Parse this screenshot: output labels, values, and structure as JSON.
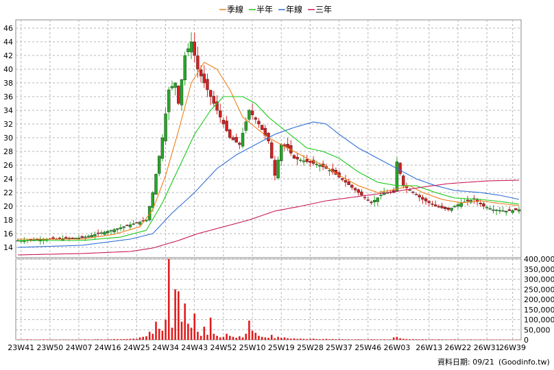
{
  "chart_data": [
    {
      "type": "line",
      "legend": [
        {
          "name": "季線",
          "color": "#f07f17"
        },
        {
          "name": "半年",
          "color": "#17c917"
        },
        {
          "name": "年線",
          "color": "#2f6fd6"
        },
        {
          "name": "三年",
          "color": "#c81a5a"
        }
      ],
      "legend_position": "top-center",
      "grid": true,
      "y_ticks": [
        14,
        16,
        18,
        20,
        22,
        24,
        26,
        28,
        30,
        32,
        34,
        36,
        38,
        40,
        42,
        44,
        46
      ],
      "ylim": [
        12.5,
        47.2
      ],
      "x_tick_labels": [
        "23W41",
        "23W50",
        "24W07",
        "24W16",
        "24W25",
        "24W34",
        "24W43",
        "24W52",
        "25W10",
        "25W19",
        "25W28",
        "25W37",
        "25W46",
        "26W03",
        "26W13",
        "26W22",
        "26W31",
        "26W39"
      ],
      "x_tick_index": [
        1,
        10,
        19,
        28,
        37,
        46,
        55,
        64,
        73,
        82,
        91,
        100,
        109,
        118,
        128,
        137,
        146,
        154
      ],
      "weeks": 157,
      "candles": {
        "up_color": "#26a626",
        "down_color": "#d42020",
        "key_closes": [
          [
            0,
            15.0
          ],
          [
            10,
            15.2
          ],
          [
            20,
            15.4
          ],
          [
            30,
            16.6
          ],
          [
            40,
            18.0
          ],
          [
            42,
            22.0
          ],
          [
            45,
            30.0
          ],
          [
            47,
            37.0
          ],
          [
            49,
            38.0
          ],
          [
            50,
            35.0
          ],
          [
            52,
            42.0
          ],
          [
            54,
            44.0
          ],
          [
            56,
            40.0
          ],
          [
            58,
            38.0
          ],
          [
            60,
            36.0
          ],
          [
            63,
            33.0
          ],
          [
            66,
            30.0
          ],
          [
            69,
            29.0
          ],
          [
            72,
            34.0
          ],
          [
            75,
            32.0
          ],
          [
            78,
            29.5
          ],
          [
            80,
            24.5
          ],
          [
            82,
            29.0
          ],
          [
            84,
            28.5
          ],
          [
            86,
            27.0
          ],
          [
            90,
            26.5
          ],
          [
            94,
            26.0
          ],
          [
            98,
            25.0
          ],
          [
            102,
            23.5
          ],
          [
            106,
            22.0
          ],
          [
            110,
            20.5
          ],
          [
            114,
            22.0
          ],
          [
            117,
            22.0
          ],
          [
            118,
            26.5
          ],
          [
            120,
            23.0
          ],
          [
            123,
            22.0
          ],
          [
            126,
            21.0
          ],
          [
            130,
            20.0
          ],
          [
            134,
            19.5
          ],
          [
            138,
            20.5
          ],
          [
            142,
            21.0
          ],
          [
            145,
            20.0
          ],
          [
            148,
            19.5
          ],
          [
            152,
            19.3
          ],
          [
            156,
            19.5
          ]
        ]
      },
      "series": [
        {
          "name": "季線",
          "color": "#f07f17",
          "points": [
            [
              0,
              15.2
            ],
            [
              20,
              15.2
            ],
            [
              30,
              15.9
            ],
            [
              38,
              17.0
            ],
            [
              42,
              19.5
            ],
            [
              46,
              24.5
            ],
            [
              50,
              31.0
            ],
            [
              54,
              38.0
            ],
            [
              58,
              41.0
            ],
            [
              62,
              40.0
            ],
            [
              66,
              37.0
            ],
            [
              70,
              33.0
            ],
            [
              74,
              31.5
            ],
            [
              78,
              30.0
            ],
            [
              82,
              29.0
            ],
            [
              86,
              28.0
            ],
            [
              90,
              27.0
            ],
            [
              95,
              26.0
            ],
            [
              100,
              24.5
            ],
            [
              106,
              23.0
            ],
            [
              112,
              22.0
            ],
            [
              118,
              22.5
            ],
            [
              122,
              23.0
            ],
            [
              126,
              22.0
            ],
            [
              132,
              21.0
            ],
            [
              138,
              20.5
            ],
            [
              144,
              20.8
            ],
            [
              150,
              20.4
            ],
            [
              156,
              20.1
            ]
          ]
        },
        {
          "name": "半年",
          "color": "#17c917",
          "points": [
            [
              0,
              15.0
            ],
            [
              20,
              15.0
            ],
            [
              32,
              15.5
            ],
            [
              40,
              16.5
            ],
            [
              45,
              20.5
            ],
            [
              50,
              25.5
            ],
            [
              55,
              30.5
            ],
            [
              60,
              34.0
            ],
            [
              64,
              36.0
            ],
            [
              70,
              36.0
            ],
            [
              74,
              35.0
            ],
            [
              78,
              33.0
            ],
            [
              82,
              31.5
            ],
            [
              86,
              30.0
            ],
            [
              90,
              28.5
            ],
            [
              95,
              28.0
            ],
            [
              100,
              27.0
            ],
            [
              106,
              25.0
            ],
            [
              112,
              23.5
            ],
            [
              118,
              23.0
            ],
            [
              124,
              23.0
            ],
            [
              130,
              22.0
            ],
            [
              136,
              21.2
            ],
            [
              144,
              21.0
            ],
            [
              150,
              20.7
            ],
            [
              156,
              20.3
            ]
          ]
        },
        {
          "name": "年線",
          "color": "#2f6fd6",
          "points": [
            [
              0,
              14.0
            ],
            [
              20,
              14.3
            ],
            [
              35,
              15.2
            ],
            [
              42,
              16.0
            ],
            [
              48,
              19.0
            ],
            [
              55,
              22.0
            ],
            [
              62,
              25.5
            ],
            [
              68,
              27.5
            ],
            [
              74,
              29.0
            ],
            [
              80,
              30.5
            ],
            [
              86,
              31.5
            ],
            [
              92,
              32.3
            ],
            [
              96,
              32.0
            ],
            [
              100,
              30.5
            ],
            [
              106,
              28.5
            ],
            [
              112,
              27.0
            ],
            [
              118,
              25.5
            ],
            [
              124,
              24.0
            ],
            [
              130,
              23.0
            ],
            [
              136,
              22.3
            ],
            [
              144,
              22.0
            ],
            [
              150,
              21.6
            ],
            [
              156,
              21.0
            ]
          ]
        },
        {
          "name": "三年",
          "color": "#c81a5a",
          "points": [
            [
              0,
              12.9
            ],
            [
              20,
              13.1
            ],
            [
              35,
              13.4
            ],
            [
              42,
              13.9
            ],
            [
              50,
              15.0
            ],
            [
              56,
              16.0
            ],
            [
              64,
              17.0
            ],
            [
              72,
              18.0
            ],
            [
              80,
              19.3
            ],
            [
              88,
              20.0
            ],
            [
              96,
              20.8
            ],
            [
              104,
              21.3
            ],
            [
              112,
              21.8
            ],
            [
              118,
              22.2
            ],
            [
              126,
              22.8
            ],
            [
              134,
              23.3
            ],
            [
              140,
              23.5
            ],
            [
              146,
              23.7
            ],
            [
              156,
              23.8
            ]
          ]
        }
      ]
    },
    {
      "type": "bar",
      "color": "#e01b1b",
      "ylim": [
        0,
        400000
      ],
      "y_ticks": [
        0,
        50000,
        100000,
        150000,
        200000,
        250000,
        300000,
        350000,
        400000
      ],
      "y_tick_labels": [
        "0",
        "50,000",
        "100,000",
        "150,000",
        "200,000",
        "250,000",
        "300,000",
        "350,000",
        "400,000"
      ],
      "values": [
        2000,
        1500,
        1800,
        2500,
        2000,
        1200,
        1500,
        2000,
        2200,
        1800,
        1500,
        1200,
        1000,
        1500,
        1800,
        2000,
        1500,
        1200,
        1000,
        1300,
        1800,
        2500,
        2000,
        1500,
        2500,
        3000,
        2200,
        1800,
        2500,
        3000,
        4000,
        3500,
        3000,
        3500,
        4000,
        5000,
        6000,
        5000,
        12000,
        15000,
        18000,
        40000,
        30000,
        90000,
        55000,
        45000,
        100000,
        400000,
        60000,
        250000,
        240000,
        90000,
        180000,
        80000,
        60000,
        130000,
        40000,
        20000,
        65000,
        25000,
        110000,
        30000,
        20000,
        12000,
        15000,
        30000,
        20000,
        15000,
        10000,
        18000,
        12000,
        30000,
        95000,
        45000,
        35000,
        20000,
        15000,
        12000,
        10000,
        25000,
        8000,
        15000,
        10000,
        12000,
        8000,
        6000,
        7000,
        5000,
        6000,
        5000,
        4000,
        5000,
        6000,
        4000,
        3000,
        4000,
        5000,
        3000,
        4000,
        3000,
        3500,
        3000,
        2500,
        3000,
        2000,
        2500,
        3000,
        2500,
        2000,
        2500,
        3000,
        2500,
        2000,
        2500,
        3000,
        2000,
        2500,
        12000,
        15000,
        8000,
        5000,
        4000,
        3000,
        3500,
        3000,
        2500,
        3000,
        2500,
        2000,
        2500,
        2000,
        3000,
        2500,
        2000,
        1800,
        2000,
        2500,
        2000,
        1800,
        1500,
        2000,
        2200,
        1800,
        1500,
        2000,
        1800,
        1600,
        1500,
        1400,
        1800,
        2000,
        1500,
        1400,
        1300,
        1200,
        1500,
        1300
      ]
    }
  ],
  "footer": {
    "date_label": "資料日期: 09/21",
    "source": "(Goodinfo.tw)"
  }
}
